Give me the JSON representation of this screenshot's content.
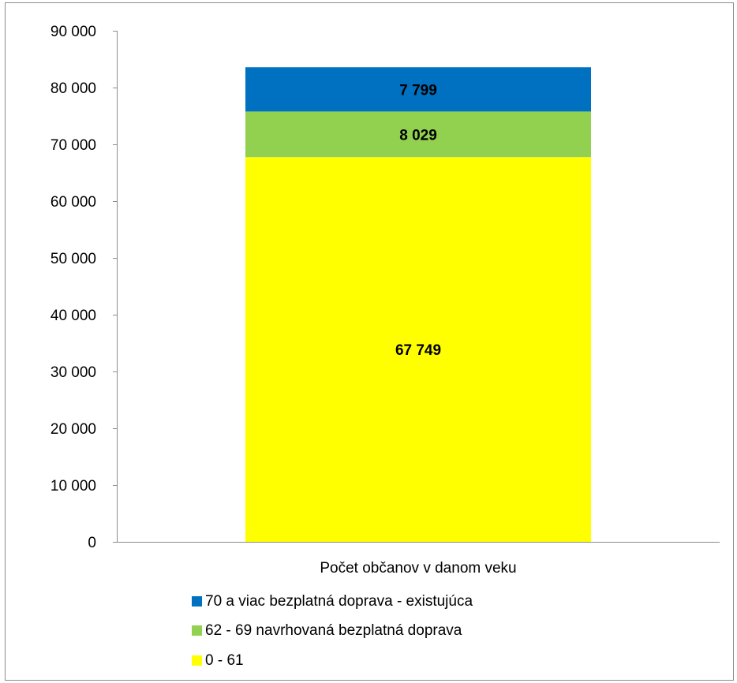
{
  "chart_data": {
    "type": "bar",
    "stacked": true,
    "title": "",
    "xlabel": "",
    "ylabel": "",
    "categories": [
      "Počet občanov v danom veku"
    ],
    "ylim": [
      0,
      90000
    ],
    "yticks": [
      0,
      10000,
      20000,
      30000,
      40000,
      50000,
      60000,
      70000,
      80000,
      90000
    ],
    "ytick_labels": [
      "0",
      "10 000",
      "20 000",
      "30 000",
      "40 000",
      "50 000",
      "60 000",
      "70 000",
      "80 000",
      "90 000"
    ],
    "grid": false,
    "legend_position": "bottom",
    "series": [
      {
        "name": "0 - 61",
        "values": [
          67749
        ],
        "value_labels": [
          "67 749"
        ],
        "color": "#ffff00"
      },
      {
        "name": "62 - 69  navrhovaná bezplatná doprava",
        "values": [
          8029
        ],
        "value_labels": [
          "8 029"
        ],
        "color": "#92d050"
      },
      {
        "name": "70 a viac bezplatná doprava - existujúca",
        "values": [
          7799
        ],
        "value_labels": [
          "7 799"
        ],
        "color": "#0070c0"
      }
    ],
    "legend_order": [
      "70 a viac bezplatná doprava - existujúca",
      "62 - 69  navrhovaná bezplatná doprava",
      "0 - 61"
    ]
  }
}
